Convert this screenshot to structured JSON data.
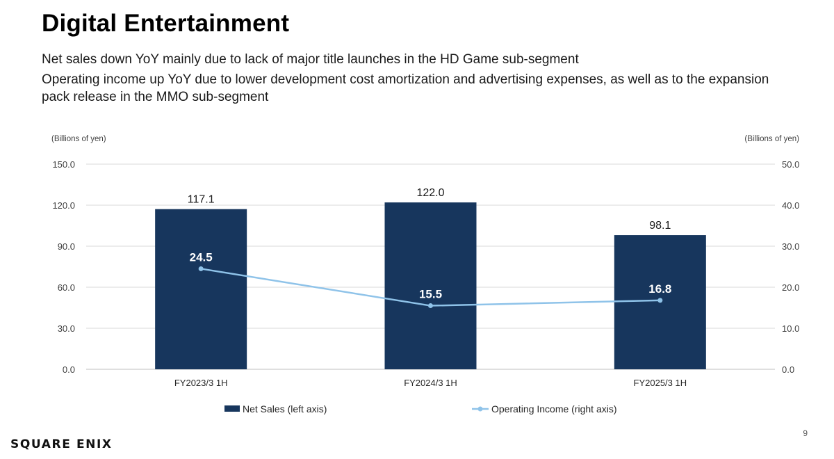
{
  "header": {
    "title": "Digital Entertainment",
    "line1": "Net sales down YoY mainly due to lack of major title launches in the HD Game sub-segment",
    "line2": "Operating income up YoY due to lower development cost amortization and advertising expenses, as well as to the expansion pack release in the MMO sub-segment"
  },
  "chart_data": {
    "type": "bar",
    "categories": [
      "FY2023/3 1H",
      "FY2024/3 1H",
      "FY2025/3 1H"
    ],
    "series": [
      {
        "name": "Net Sales (left axis)",
        "kind": "bar",
        "axis": "left",
        "values": [
          117.1,
          122.0,
          98.1
        ],
        "labels": [
          "117.1",
          "122.0",
          "98.1"
        ],
        "color": "#17365d"
      },
      {
        "name": "Operating Income (right axis)",
        "kind": "line",
        "axis": "right",
        "values": [
          24.5,
          15.5,
          16.8
        ],
        "labels": [
          "24.5",
          "15.5",
          "16.8"
        ],
        "color": "#8fc3e9"
      }
    ],
    "left_axis": {
      "unit": "(Billions of yen)",
      "ylim": [
        0,
        150
      ],
      "ticks": [
        "0.0",
        "30.0",
        "60.0",
        "90.0",
        "120.0",
        "150.0"
      ]
    },
    "right_axis": {
      "unit": "(Billions of yen)",
      "ylim": [
        0,
        50
      ],
      "ticks": [
        "0.0",
        "10.0",
        "20.0",
        "30.0",
        "40.0",
        "50.0"
      ]
    },
    "grid": true,
    "legend_position": "bottom"
  },
  "footer": {
    "logo": "SQUARE ENIX",
    "page_number": "9"
  }
}
